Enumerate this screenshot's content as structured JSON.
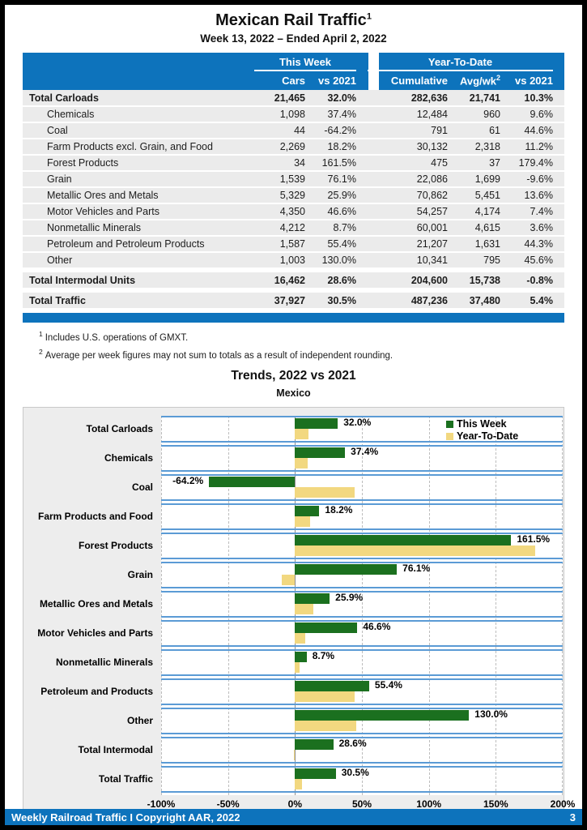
{
  "page": {
    "title": "Mexican Rail Traffic",
    "title_sup": "1",
    "subtitle": "Week 13, 2022 – Ended April 2, 2022"
  },
  "colors": {
    "header_blue": "#0D73BC",
    "band_separator_blue": "#5B9BD5",
    "this_week_green": "#1B701F",
    "year_to_date_tan": "#F2D880",
    "positive_text": "#1E7B21",
    "negative_text": "#E00000",
    "row_gray": "#EBEBEB",
    "chart_panel_gray": "#EDEDED"
  },
  "table": {
    "group_headers": [
      {
        "label": "This Week"
      },
      {
        "label": "Year-To-Date"
      }
    ],
    "columns": [
      "Cars",
      "vs 2021",
      "Cumulative",
      "Avg/wk",
      "vs 2021"
    ],
    "avg_wk_sup": "2",
    "rows": [
      {
        "label": "Total Carloads",
        "style": "total",
        "gap_above": false,
        "cars": "21,465",
        "week_vs_2021": "32.0%",
        "cumulative": "282,636",
        "avg_per_week": "21,741",
        "ytd_vs_2021": "10.3%"
      },
      {
        "label": "Chemicals",
        "style": "sub",
        "gap_above": false,
        "cars": "1,098",
        "week_vs_2021": "37.4%",
        "cumulative": "12,484",
        "avg_per_week": "960",
        "ytd_vs_2021": "9.6%"
      },
      {
        "label": "Coal",
        "style": "sub",
        "gap_above": false,
        "cars": "44",
        "week_vs_2021": "-64.2%",
        "cumulative": "791",
        "avg_per_week": "61",
        "ytd_vs_2021": "44.6%"
      },
      {
        "label": "Farm Products excl. Grain, and Food",
        "style": "sub",
        "gap_above": false,
        "cars": "2,269",
        "week_vs_2021": "18.2%",
        "cumulative": "30,132",
        "avg_per_week": "2,318",
        "ytd_vs_2021": "11.2%"
      },
      {
        "label": "Forest Products",
        "style": "sub",
        "gap_above": false,
        "cars": "34",
        "week_vs_2021": "161.5%",
        "cumulative": "475",
        "avg_per_week": "37",
        "ytd_vs_2021": "179.4%"
      },
      {
        "label": "Grain",
        "style": "sub",
        "gap_above": false,
        "cars": "1,539",
        "week_vs_2021": "76.1%",
        "cumulative": "22,086",
        "avg_per_week": "1,699",
        "ytd_vs_2021": "-9.6%"
      },
      {
        "label": "Metallic Ores and Metals",
        "style": "sub",
        "gap_above": false,
        "cars": "5,329",
        "week_vs_2021": "25.9%",
        "cumulative": "70,862",
        "avg_per_week": "5,451",
        "ytd_vs_2021": "13.6%"
      },
      {
        "label": "Motor Vehicles and Parts",
        "style": "sub",
        "gap_above": false,
        "cars": "4,350",
        "week_vs_2021": "46.6%",
        "cumulative": "54,257",
        "avg_per_week": "4,174",
        "ytd_vs_2021": "7.4%"
      },
      {
        "label": "Nonmetallic Minerals",
        "style": "sub",
        "gap_above": false,
        "cars": "4,212",
        "week_vs_2021": "8.7%",
        "cumulative": "60,001",
        "avg_per_week": "4,615",
        "ytd_vs_2021": "3.6%"
      },
      {
        "label": "Petroleum and Petroleum Products",
        "style": "sub",
        "gap_above": false,
        "cars": "1,587",
        "week_vs_2021": "55.4%",
        "cumulative": "21,207",
        "avg_per_week": "1,631",
        "ytd_vs_2021": "44.3%"
      },
      {
        "label": "Other",
        "style": "sub",
        "gap_above": false,
        "cars": "1,003",
        "week_vs_2021": "130.0%",
        "cumulative": "10,341",
        "avg_per_week": "795",
        "ytd_vs_2021": "45.6%"
      },
      {
        "label": "Total Intermodal Units",
        "style": "total",
        "gap_above": true,
        "cars": "16,462",
        "week_vs_2021": "28.6%",
        "cumulative": "204,600",
        "avg_per_week": "15,738",
        "ytd_vs_2021": "-0.8%"
      },
      {
        "label": "Total Traffic",
        "style": "total",
        "gap_above": true,
        "cars": "37,927",
        "week_vs_2021": "30.5%",
        "cumulative": "487,236",
        "avg_per_week": "37,480",
        "ytd_vs_2021": "5.4%"
      }
    ]
  },
  "footnotes": [
    {
      "sup": "1",
      "text": "Includes U.S. operations of GMXT."
    },
    {
      "sup": "2",
      "text": "Average per week figures may not sum to totals as a result of independent rounding."
    }
  ],
  "chart_data": {
    "type": "bar",
    "orientation": "horizontal",
    "title": "Trends, 2022 vs 2021",
    "subtitle": "Mexico",
    "categories": [
      "Total Carloads",
      "Chemicals",
      "Coal",
      "Farm Products and Food",
      "Forest Products",
      "Grain",
      "Metallic Ores and Metals",
      "Motor Vehicles and Parts",
      "Nonmetallic Minerals",
      "Petroleum and Products",
      "Other",
      "Total Intermodal",
      "Total Traffic"
    ],
    "series": [
      {
        "name": "This Week",
        "color": "#1B701F",
        "values": [
          32.0,
          37.4,
          -64.2,
          18.2,
          161.5,
          76.1,
          25.9,
          46.6,
          8.7,
          55.4,
          130.0,
          28.6,
          30.5
        ],
        "labels": [
          "32.0%",
          "37.4%",
          "-64.2%",
          "18.2%",
          "161.5%",
          "76.1%",
          "25.9%",
          "46.6%",
          "8.7%",
          "55.4%",
          "130.0%",
          "28.6%",
          "30.5%"
        ]
      },
      {
        "name": "Year-To-Date",
        "color": "#F2D880",
        "values": [
          10.3,
          9.6,
          44.6,
          11.2,
          179.4,
          -9.6,
          13.6,
          7.4,
          3.6,
          44.3,
          45.6,
          -0.8,
          5.4
        ]
      }
    ],
    "xlim": [
      -100,
      200
    ],
    "x_tick_values": [
      -100,
      -50,
      0,
      50,
      100,
      150,
      200
    ],
    "x_tick_labels": [
      "-100%",
      "-50%",
      "0%",
      "50%",
      "100%",
      "150%",
      "200%"
    ],
    "legend_position": "top-right",
    "grid": "dashed vertical gridlines every 50%, solid line at 0%"
  },
  "footer": {
    "text": "Weekly Railroad Traffic I Copyright AAR, 2022",
    "page_number": "3"
  }
}
